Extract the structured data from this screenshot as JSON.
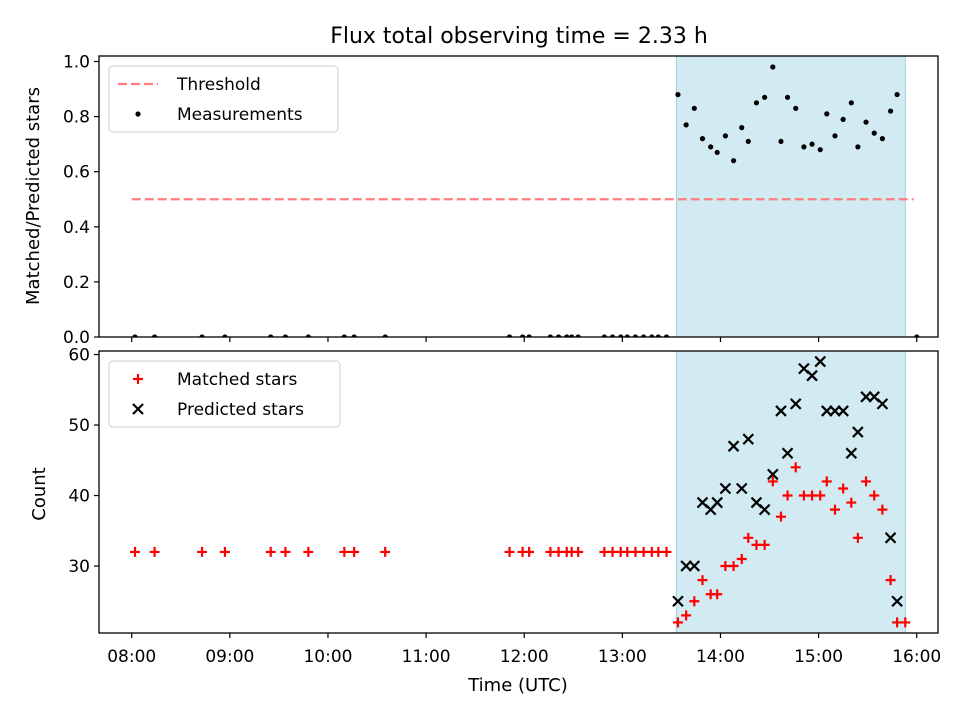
{
  "title": "Flux total observing time = 2.33 h",
  "chart_data": [
    {
      "type": "scatter",
      "ylabel": "Matched/Predicted stars",
      "xlim": [
        "07:40",
        "16:13"
      ],
      "ylim": [
        0,
        1.02
      ],
      "yticks": [
        "0.0",
        "0.2",
        "0.4",
        "0.6",
        "0.8",
        "1.0"
      ],
      "legend": {
        "placement": "top-left",
        "entries": [
          "Threshold",
          "Measurements"
        ]
      },
      "shaded_span": {
        "start": "13:33",
        "end": "15:53",
        "color": "#add8e6"
      },
      "threshold": {
        "name": "Threshold",
        "value": 0.5,
        "x_start": "08:00",
        "x_end": "15:58",
        "color": "#ff7f7f",
        "style": "dashed"
      },
      "series": [
        {
          "name": "Measurements",
          "color": "#000000",
          "points": [
            {
              "x": "08:02",
              "y": 0
            },
            {
              "x": "08:14",
              "y": 0
            },
            {
              "x": "08:43",
              "y": 0
            },
            {
              "x": "08:57",
              "y": 0
            },
            {
              "x": "09:25",
              "y": 0
            },
            {
              "x": "09:34",
              "y": 0
            },
            {
              "x": "09:48",
              "y": 0
            },
            {
              "x": "10:10",
              "y": 0
            },
            {
              "x": "10:16",
              "y": 0
            },
            {
              "x": "10:35",
              "y": 0
            },
            {
              "x": "11:51",
              "y": 0
            },
            {
              "x": "11:59",
              "y": 0
            },
            {
              "x": "12:03",
              "y": 0
            },
            {
              "x": "12:16",
              "y": 0
            },
            {
              "x": "12:21",
              "y": 0
            },
            {
              "x": "12:26",
              "y": 0
            },
            {
              "x": "12:29",
              "y": 0
            },
            {
              "x": "12:33",
              "y": 0
            },
            {
              "x": "12:49",
              "y": 0
            },
            {
              "x": "12:54",
              "y": 0
            },
            {
              "x": "12:59",
              "y": 0
            },
            {
              "x": "13:03",
              "y": 0
            },
            {
              "x": "13:08",
              "y": 0
            },
            {
              "x": "13:13",
              "y": 0
            },
            {
              "x": "13:18",
              "y": 0
            },
            {
              "x": "13:22",
              "y": 0
            },
            {
              "x": "13:27",
              "y": 0
            },
            {
              "x": "13:34",
              "y": 0.88
            },
            {
              "x": "13:39",
              "y": 0.77
            },
            {
              "x": "13:44",
              "y": 0.83
            },
            {
              "x": "13:49",
              "y": 0.72
            },
            {
              "x": "13:54",
              "y": 0.69
            },
            {
              "x": "13:58",
              "y": 0.67
            },
            {
              "x": "14:03",
              "y": 0.73
            },
            {
              "x": "14:08",
              "y": 0.64
            },
            {
              "x": "14:13",
              "y": 0.76
            },
            {
              "x": "14:17",
              "y": 0.71
            },
            {
              "x": "14:22",
              "y": 0.85
            },
            {
              "x": "14:27",
              "y": 0.87
            },
            {
              "x": "14:32",
              "y": 0.98
            },
            {
              "x": "14:37",
              "y": 0.71
            },
            {
              "x": "14:41",
              "y": 0.87
            },
            {
              "x": "14:46",
              "y": 0.83
            },
            {
              "x": "14:51",
              "y": 0.69
            },
            {
              "x": "14:56",
              "y": 0.7
            },
            {
              "x": "15:01",
              "y": 0.68
            },
            {
              "x": "15:05",
              "y": 0.81
            },
            {
              "x": "15:10",
              "y": 0.73
            },
            {
              "x": "15:15",
              "y": 0.79
            },
            {
              "x": "15:20",
              "y": 0.85
            },
            {
              "x": "15:24",
              "y": 0.69
            },
            {
              "x": "15:29",
              "y": 0.78
            },
            {
              "x": "15:34",
              "y": 0.74
            },
            {
              "x": "15:39",
              "y": 0.72
            },
            {
              "x": "15:44",
              "y": 0.82
            },
            {
              "x": "15:48",
              "y": 0.88
            },
            {
              "x": "16:00",
              "y": 0
            }
          ]
        }
      ]
    },
    {
      "type": "scatter",
      "xlabel": "Time (UTC)",
      "ylabel": "Count",
      "xlim": [
        "07:40",
        "16:13"
      ],
      "ylim": [
        20.5,
        60.5
      ],
      "xticks": [
        "08:00",
        "09:00",
        "10:00",
        "11:00",
        "12:00",
        "13:00",
        "14:00",
        "15:00",
        "16:00"
      ],
      "yticks": [
        "30",
        "40",
        "50",
        "60"
      ],
      "legend": {
        "placement": "top-left",
        "entries": [
          "Matched stars",
          "Predicted stars"
        ]
      },
      "shaded_span": {
        "start": "13:33",
        "end": "15:53",
        "color": "#add8e6"
      },
      "series": [
        {
          "name": "Matched stars",
          "marker": "plus",
          "color": "#ff0000",
          "points": [
            {
              "x": "08:02",
              "y": 32
            },
            {
              "x": "08:14",
              "y": 32
            },
            {
              "x": "08:43",
              "y": 32
            },
            {
              "x": "08:57",
              "y": 32
            },
            {
              "x": "09:25",
              "y": 32
            },
            {
              "x": "09:34",
              "y": 32
            },
            {
              "x": "09:48",
              "y": 32
            },
            {
              "x": "10:10",
              "y": 32
            },
            {
              "x": "10:16",
              "y": 32
            },
            {
              "x": "10:35",
              "y": 32
            },
            {
              "x": "11:51",
              "y": 32
            },
            {
              "x": "11:59",
              "y": 32
            },
            {
              "x": "12:03",
              "y": 32
            },
            {
              "x": "12:16",
              "y": 32
            },
            {
              "x": "12:21",
              "y": 32
            },
            {
              "x": "12:26",
              "y": 32
            },
            {
              "x": "12:29",
              "y": 32
            },
            {
              "x": "12:33",
              "y": 32
            },
            {
              "x": "12:49",
              "y": 32
            },
            {
              "x": "12:54",
              "y": 32
            },
            {
              "x": "12:59",
              "y": 32
            },
            {
              "x": "13:03",
              "y": 32
            },
            {
              "x": "13:08",
              "y": 32
            },
            {
              "x": "13:13",
              "y": 32
            },
            {
              "x": "13:18",
              "y": 32
            },
            {
              "x": "13:22",
              "y": 32
            },
            {
              "x": "13:27",
              "y": 32
            },
            {
              "x": "13:34",
              "y": 22
            },
            {
              "x": "13:39",
              "y": 23
            },
            {
              "x": "13:44",
              "y": 25
            },
            {
              "x": "13:49",
              "y": 28
            },
            {
              "x": "13:54",
              "y": 26
            },
            {
              "x": "13:58",
              "y": 26
            },
            {
              "x": "14:03",
              "y": 30
            },
            {
              "x": "14:08",
              "y": 30
            },
            {
              "x": "14:13",
              "y": 31
            },
            {
              "x": "14:17",
              "y": 34
            },
            {
              "x": "14:22",
              "y": 33
            },
            {
              "x": "14:27",
              "y": 33
            },
            {
              "x": "14:32",
              "y": 42
            },
            {
              "x": "14:37",
              "y": 37
            },
            {
              "x": "14:41",
              "y": 40
            },
            {
              "x": "14:46",
              "y": 44
            },
            {
              "x": "14:51",
              "y": 40
            },
            {
              "x": "14:56",
              "y": 40
            },
            {
              "x": "15:01",
              "y": 40
            },
            {
              "x": "15:05",
              "y": 42
            },
            {
              "x": "15:10",
              "y": 38
            },
            {
              "x": "15:15",
              "y": 41
            },
            {
              "x": "15:20",
              "y": 39
            },
            {
              "x": "15:24",
              "y": 34
            },
            {
              "x": "15:29",
              "y": 42
            },
            {
              "x": "15:34",
              "y": 40
            },
            {
              "x": "15:39",
              "y": 38
            },
            {
              "x": "15:44",
              "y": 28
            },
            {
              "x": "15:48",
              "y": 22
            },
            {
              "x": "15:53",
              "y": 22
            }
          ]
        },
        {
          "name": "Predicted stars",
          "marker": "x",
          "color": "#000000",
          "points": [
            {
              "x": "13:34",
              "y": 25
            },
            {
              "x": "13:39",
              "y": 30
            },
            {
              "x": "13:44",
              "y": 30
            },
            {
              "x": "13:49",
              "y": 39
            },
            {
              "x": "13:54",
              "y": 38
            },
            {
              "x": "13:58",
              "y": 39
            },
            {
              "x": "14:03",
              "y": 41
            },
            {
              "x": "14:08",
              "y": 47
            },
            {
              "x": "14:13",
              "y": 41
            },
            {
              "x": "14:17",
              "y": 48
            },
            {
              "x": "14:22",
              "y": 39
            },
            {
              "x": "14:27",
              "y": 38
            },
            {
              "x": "14:32",
              "y": 43
            },
            {
              "x": "14:37",
              "y": 52
            },
            {
              "x": "14:41",
              "y": 46
            },
            {
              "x": "14:46",
              "y": 53
            },
            {
              "x": "14:51",
              "y": 58
            },
            {
              "x": "14:56",
              "y": 57
            },
            {
              "x": "15:01",
              "y": 59
            },
            {
              "x": "15:05",
              "y": 52
            },
            {
              "x": "15:10",
              "y": 52
            },
            {
              "x": "15:15",
              "y": 52
            },
            {
              "x": "15:20",
              "y": 46
            },
            {
              "x": "15:24",
              "y": 49
            },
            {
              "x": "15:29",
              "y": 54
            },
            {
              "x": "15:34",
              "y": 54
            },
            {
              "x": "15:39",
              "y": 53
            },
            {
              "x": "15:44",
              "y": 34
            },
            {
              "x": "15:48",
              "y": 25
            }
          ]
        }
      ]
    }
  ]
}
